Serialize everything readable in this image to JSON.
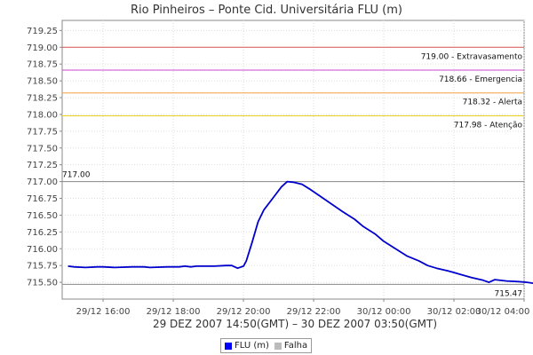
{
  "chart_data": {
    "type": "line",
    "title": "Rio Pinheiros – Ponte Cid. Universitária FLU (m)",
    "xlabel": "29 DEZ 2007 14:50(GMT) – 30 DEZ 2007 03:50(GMT)",
    "ylim": [
      715.25,
      719.4
    ],
    "xlim": [
      "2007-12-29 14:50",
      "2007-12-30 04:00"
    ],
    "yticks": [
      "715.50",
      "715.75",
      "716.00",
      "716.25",
      "716.50",
      "716.75",
      "717.00",
      "717.25",
      "717.50",
      "717.75",
      "718.00",
      "718.25",
      "718.50",
      "718.75",
      "719.00",
      "719.25"
    ],
    "xticks": [
      {
        "t": "2007-12-29 16:00",
        "label": "29/12 16:00"
      },
      {
        "t": "2007-12-29 18:00",
        "label": "29/12 18:00"
      },
      {
        "t": "2007-12-29 20:00",
        "label": "29/12 20:00"
      },
      {
        "t": "2007-12-29 22:00",
        "label": "29/12 22:00"
      },
      {
        "t": "2007-12-30 00:00",
        "label": "30/12 00:00"
      },
      {
        "t": "2007-12-30 02:00",
        "label": "30/12 02:00"
      },
      {
        "t": "2007-12-30 04:00",
        "label": "30/12 04:00"
      }
    ],
    "reference_lines": [
      {
        "value": 719.0,
        "label": "719.00 - Extravasamento",
        "color": "#d9534f"
      },
      {
        "value": 718.66,
        "label": "718.66 - Emergencia",
        "color": "#cc44cc"
      },
      {
        "value": 718.32,
        "label": "718.32 - Alerta",
        "color": "#f0a040"
      },
      {
        "value": 717.98,
        "label": "717.98 - Atenção",
        "color": "#e8d020"
      },
      {
        "value": 717.0,
        "label": "717.00",
        "color": "#888888"
      },
      {
        "value": 715.47,
        "label": "715.47",
        "color": "#888888"
      }
    ],
    "series": [
      {
        "name": "FLU (m)",
        "color": "#0000cc",
        "points": [
          [
            "2007-12-29 15:00",
            715.74
          ],
          [
            "2007-12-29 15:10",
            715.73
          ],
          [
            "2007-12-29 15:30",
            715.72
          ],
          [
            "2007-12-29 15:50",
            715.73
          ],
          [
            "2007-12-29 16:00",
            715.73
          ],
          [
            "2007-12-29 16:20",
            715.72
          ],
          [
            "2007-12-29 16:50",
            715.73
          ],
          [
            "2007-12-29 17:10",
            715.73
          ],
          [
            "2007-12-29 17:20",
            715.72
          ],
          [
            "2007-12-29 17:50",
            715.73
          ],
          [
            "2007-12-29 18:10",
            715.73
          ],
          [
            "2007-12-29 18:20",
            715.74
          ],
          [
            "2007-12-29 18:30",
            715.73
          ],
          [
            "2007-12-29 18:40",
            715.74
          ],
          [
            "2007-12-29 19:10",
            715.74
          ],
          [
            "2007-12-29 19:30",
            715.75
          ],
          [
            "2007-12-29 19:40",
            715.75
          ],
          [
            "2007-12-29 19:50",
            715.71
          ],
          [
            "2007-12-29 20:00",
            715.74
          ],
          [
            "2007-12-29 20:05",
            715.82
          ],
          [
            "2007-12-29 20:15",
            716.1
          ],
          [
            "2007-12-29 20:25",
            716.4
          ],
          [
            "2007-12-29 20:35",
            716.58
          ],
          [
            "2007-12-29 20:50",
            716.75
          ],
          [
            "2007-12-29 21:05",
            716.92
          ],
          [
            "2007-12-29 21:15",
            717.0
          ],
          [
            "2007-12-29 21:25",
            716.99
          ],
          [
            "2007-12-29 21:40",
            716.96
          ],
          [
            "2007-12-29 21:55",
            716.88
          ],
          [
            "2007-12-29 22:10",
            716.79
          ],
          [
            "2007-12-29 22:30",
            716.67
          ],
          [
            "2007-12-29 22:50",
            716.55
          ],
          [
            "2007-12-29 23:10",
            716.44
          ],
          [
            "2007-12-29 23:25",
            716.33
          ],
          [
            "2007-12-29 23:45",
            716.22
          ],
          [
            "2007-12-30 00:00",
            716.11
          ],
          [
            "2007-12-30 00:20",
            716.0
          ],
          [
            "2007-12-30 00:40",
            715.89
          ],
          [
            "2007-12-30 01:00",
            715.82
          ],
          [
            "2007-12-30 01:15",
            715.75
          ],
          [
            "2007-12-30 01:30",
            715.71
          ],
          [
            "2007-12-30 01:50",
            715.67
          ],
          [
            "2007-12-30 02:10",
            715.62
          ],
          [
            "2007-12-30 02:30",
            715.57
          ],
          [
            "2007-12-30 02:50",
            715.53
          ],
          [
            "2007-12-30 03:00",
            715.5
          ],
          [
            "2007-12-30 03:10",
            715.54
          ],
          [
            "2007-12-30 03:30",
            715.52
          ],
          [
            "2007-12-30 03:50",
            715.51
          ],
          [
            "2007-12-30 04:05",
            715.5
          ],
          [
            "2007-12-30 04:20",
            715.48
          ],
          [
            "2007-12-30 04:35",
            715.47
          ]
        ]
      }
    ],
    "legend": {
      "position": "bottom",
      "items": [
        {
          "label": "FLU (m)",
          "color": "#0000ff"
        },
        {
          "label": "Falha",
          "color": "#bbbbbb"
        }
      ]
    },
    "grid": true
  }
}
